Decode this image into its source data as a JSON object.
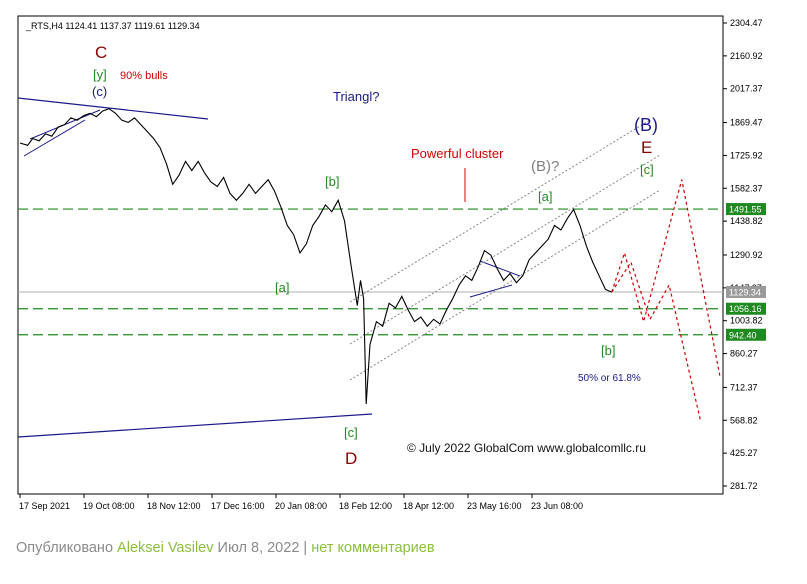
{
  "chart_data": {
    "type": "line",
    "symbol_header": "_RTS,H4  1124.41 1137.37 1119.61 1129.34",
    "y_axis": {
      "ticks": [
        2304.47,
        2160.92,
        2017.37,
        1869.47,
        1725.92,
        1582.37,
        1438.82,
        1290.92,
        1147.37,
        1003.82,
        860.27,
        712.37,
        568.82,
        425.27,
        281.72
      ],
      "labels": [
        "2304.47",
        "2160.92",
        "2017.37",
        "1869.47",
        "1725.92",
        "1582.37",
        "1438.82",
        "1290.92",
        "1147.37",
        "1003.82",
        "860.27",
        "712.37",
        "568.82",
        "425.27",
        "281.72"
      ],
      "ylim": [
        281.72,
        2304.47
      ]
    },
    "x_axis": {
      "labels": [
        "17 Sep 2021",
        "19 Oct 08:00",
        "18 Nov 12:00",
        "17 Dec 16:00",
        "20 Jan 08:00",
        "18 Feb 12:00",
        "18 Apr 12:00",
        "23 May 16:00",
        "23 Jun 08:00"
      ]
    },
    "price_levels": [
      {
        "label": "1491.55",
        "value": 1491.55,
        "style": "green-dashed",
        "label_bg": "#1f8a1f"
      },
      {
        "label": "1129.34",
        "value": 1129.34,
        "style": "gray-solid",
        "label_bg": "#9a9a9a"
      },
      {
        "label": "1056.16",
        "value": 1056.16,
        "style": "green-dashed",
        "label_bg": "#1f8a1f"
      },
      {
        "label": "942.40",
        "value": 942.4,
        "style": "green-dashed",
        "label_bg": "#1f8a1f"
      }
    ],
    "price_series": [
      [
        0.0,
        1780
      ],
      [
        1.2,
        1770
      ],
      [
        2.0,
        1800
      ],
      [
        3.0,
        1790
      ],
      [
        4.0,
        1820
      ],
      [
        5.0,
        1810
      ],
      [
        6.0,
        1850
      ],
      [
        7.0,
        1860
      ],
      [
        8.0,
        1890
      ],
      [
        9.0,
        1880
      ],
      [
        10.0,
        1900
      ],
      [
        11.0,
        1910
      ],
      [
        12.0,
        1895
      ],
      [
        13.0,
        1920
      ],
      [
        14.0,
        1930
      ],
      [
        15.0,
        1910
      ],
      [
        16.0,
        1880
      ],
      [
        17.0,
        1870
      ],
      [
        18.0,
        1890
      ],
      [
        19.0,
        1860
      ],
      [
        20.0,
        1830
      ],
      [
        21.0,
        1800
      ],
      [
        22.0,
        1760
      ],
      [
        23.0,
        1690
      ],
      [
        24.0,
        1600
      ],
      [
        25.0,
        1640
      ],
      [
        26.0,
        1700
      ],
      [
        27.0,
        1660
      ],
      [
        28.0,
        1700
      ],
      [
        29.0,
        1650
      ],
      [
        30.0,
        1610
      ],
      [
        31.0,
        1590
      ],
      [
        32.0,
        1630
      ],
      [
        33.0,
        1560
      ],
      [
        34.0,
        1530
      ],
      [
        35.0,
        1560
      ],
      [
        36.0,
        1600
      ],
      [
        37.0,
        1560
      ],
      [
        38.0,
        1590
      ],
      [
        39.0,
        1620
      ],
      [
        40.0,
        1570
      ],
      [
        41.0,
        1500
      ],
      [
        42.0,
        1420
      ],
      [
        43.0,
        1380
      ],
      [
        44.0,
        1300
      ],
      [
        45.0,
        1340
      ],
      [
        46.0,
        1420
      ],
      [
        47.0,
        1460
      ],
      [
        48.0,
        1510
      ],
      [
        49.0,
        1480
      ],
      [
        50.0,
        1530
      ],
      [
        51.0,
        1440
      ],
      [
        52.0,
        1250
      ],
      [
        53.0,
        1070
      ],
      [
        53.5,
        1180
      ],
      [
        54.0,
        1100
      ],
      [
        54.4,
        640
      ],
      [
        55.0,
        900
      ],
      [
        56.0,
        1000
      ],
      [
        57.0,
        980
      ],
      [
        58.0,
        1080
      ],
      [
        59.0,
        1060
      ],
      [
        60.0,
        1110
      ],
      [
        61.0,
        1050
      ],
      [
        62.0,
        1000
      ],
      [
        63.0,
        1020
      ],
      [
        64.0,
        980
      ],
      [
        65.0,
        1010
      ],
      [
        66.0,
        990
      ],
      [
        67.0,
        1050
      ],
      [
        68.0,
        1100
      ],
      [
        69.0,
        1160
      ],
      [
        70.0,
        1200
      ],
      [
        71.0,
        1180
      ],
      [
        72.0,
        1240
      ],
      [
        73.0,
        1310
      ],
      [
        74.0,
        1290
      ],
      [
        75.0,
        1230
      ],
      [
        76.0,
        1180
      ],
      [
        77.0,
        1210
      ],
      [
        78.0,
        1170
      ],
      [
        79.0,
        1200
      ],
      [
        80.0,
        1270
      ],
      [
        81.0,
        1300
      ],
      [
        82.0,
        1330
      ],
      [
        83.0,
        1360
      ],
      [
        84.0,
        1420
      ],
      [
        85.0,
        1400
      ],
      [
        86.0,
        1450
      ],
      [
        87.0,
        1490
      ],
      [
        88.0,
        1420
      ],
      [
        89.0,
        1330
      ],
      [
        90.0,
        1260
      ],
      [
        91.0,
        1200
      ],
      [
        92.0,
        1140
      ],
      [
        93.0,
        1129
      ]
    ],
    "forecast_paths": [
      {
        "name": "red-dotted",
        "color": "#cc0000",
        "points": [
          [
            93,
            1129
          ],
          [
            95,
            1300
          ],
          [
            98,
            1000
          ],
          [
            104,
            1620
          ],
          [
            110,
            760
          ]
        ]
      },
      {
        "name": "red-dotted-alt",
        "color": "#cc0000",
        "points": [
          [
            93,
            1129
          ],
          [
            96,
            1260
          ],
          [
            99,
            1010
          ],
          [
            102,
            1160
          ],
          [
            107,
            560
          ]
        ]
      }
    ],
    "annotations": [
      {
        "id": "C",
        "text": "C",
        "color": "#8b0000"
      },
      {
        "id": "y",
        "text": "[y]",
        "color": "#228b22"
      },
      {
        "id": "bulls",
        "text": "90% bulls",
        "color": "#d40000"
      },
      {
        "id": "c-paren",
        "text": "(c)",
        "color": "#1a1a8c"
      },
      {
        "id": "triangl",
        "text": "Triangl?",
        "color": "#1a1a8c"
      },
      {
        "id": "b1",
        "text": "[b]",
        "color": "#228b22"
      },
      {
        "id": "a1",
        "text": "[a]",
        "color": "#228b22"
      },
      {
        "id": "powerful",
        "text": "Powerful cluster",
        "color": "#d40000"
      },
      {
        "id": "B-q",
        "text": "(B)?",
        "color": "#808080"
      },
      {
        "id": "a2",
        "text": "[a]",
        "color": "#228b22"
      },
      {
        "id": "B",
        "text": "(B)",
        "color": "#1a1a8c"
      },
      {
        "id": "E",
        "text": "E",
        "color": "#8b0000"
      },
      {
        "id": "c2",
        "text": "[c]",
        "color": "#228b22"
      },
      {
        "id": "b2",
        "text": "[b]",
        "color": "#228b22"
      },
      {
        "id": "fib",
        "text": "50% or 61.8%",
        "color": "#1a1a8c"
      },
      {
        "id": "c3",
        "text": "[c]",
        "color": "#228b22"
      },
      {
        "id": "D",
        "text": "D",
        "color": "#8b0000"
      },
      {
        "id": "copyright",
        "text": "© July 2022 GlobalCom www.globalcomllc.ru",
        "color": "#111111"
      }
    ]
  },
  "footer": {
    "prefix": "Опубликовано",
    "author": "Aleksei Vasilev",
    "date": "Июл 8, 2022",
    "separator": "|",
    "comments": "нет комментариев"
  }
}
